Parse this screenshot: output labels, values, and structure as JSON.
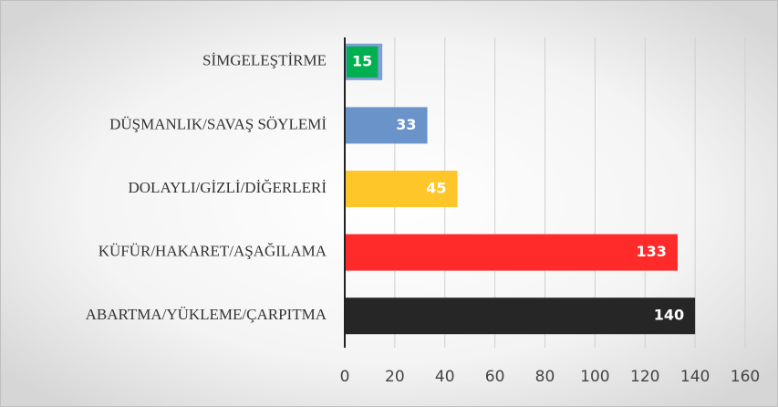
{
  "chart_data": {
    "type": "barh",
    "categories": [
      "SİMGELEŞTİRME",
      "DÜŞMANLIK/SAVAŞ SÖYLEMİ",
      "DOLAYLI/GİZLİ/DİĞERLERİ",
      "KÜFÜR/HAKARET/AŞAĞILAMA",
      "ABARTMA/YÜKLEME/ÇARPITMA"
    ],
    "values": [
      15,
      33,
      45,
      133,
      140
    ],
    "colors": [
      "#7d9fd6",
      "#6a93c9",
      "#ffc629",
      "#ff2a2a",
      "#262626"
    ],
    "value_label_colors": [
      "#00b050",
      "#6a93c9",
      "#ffc629",
      "#ff2a2a",
      "#262626"
    ],
    "xlim": [
      0,
      160
    ],
    "xticks": [
      0,
      20,
      40,
      60,
      80,
      100,
      120,
      140,
      160
    ],
    "grid": true
  }
}
